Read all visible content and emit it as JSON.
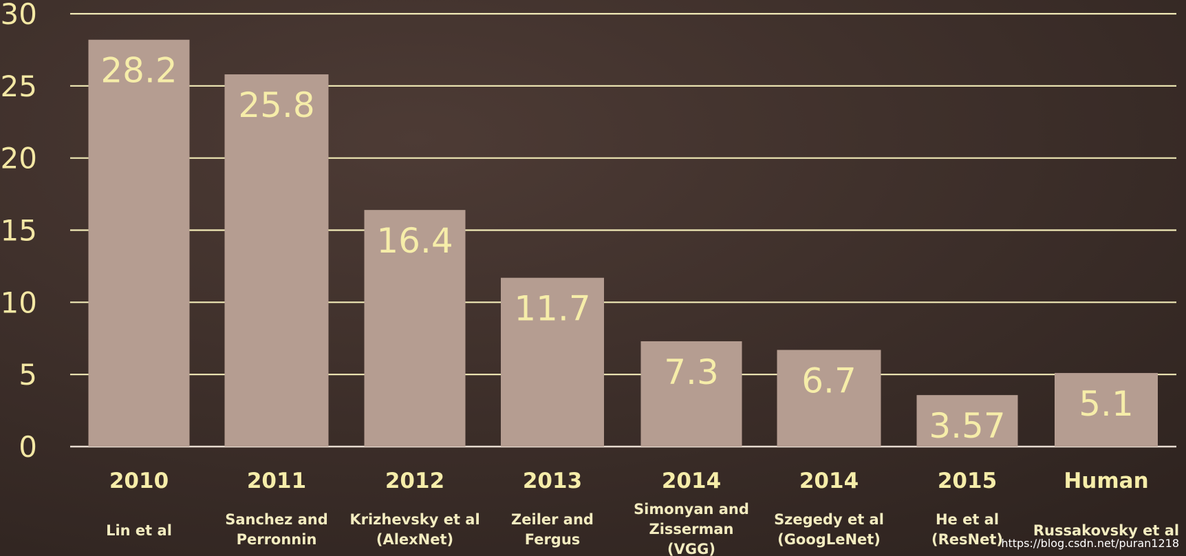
{
  "chart_data": {
    "type": "bar",
    "categories": [
      "2010",
      "2011",
      "2012",
      "2013",
      "2014",
      "2014",
      "2015",
      "Human"
    ],
    "subtitles": [
      [
        "Lin et al"
      ],
      [
        "Sanchez and",
        "Perronnin"
      ],
      [
        "Krizhevsky et al",
        "(AlexNet)"
      ],
      [
        "Zeiler and",
        "Fergus"
      ],
      [
        "Simonyan and",
        "Zisserman",
        "(VGG)"
      ],
      [
        "Szegedy et al",
        "(GoogLeNet)"
      ],
      [
        "He et al",
        "(ResNet)"
      ],
      [
        "Russakovsky et al"
      ]
    ],
    "values": [
      28.2,
      25.8,
      16.4,
      11.7,
      7.3,
      6.7,
      3.57,
      5.1
    ],
    "value_labels": [
      "28.2",
      "25.8",
      "16.4",
      "11.7",
      "7.3",
      "6.7",
      "3.57",
      "5.1"
    ],
    "yticks": [
      "0",
      "5",
      "10",
      "15",
      "20",
      "25",
      "30"
    ],
    "ylim": [
      0,
      30
    ],
    "grid": true,
    "colors": {
      "background": "#3e2f2a",
      "bar": "#b59d91",
      "grid": "#f3ecb8",
      "text": "#f6eda9"
    }
  },
  "watermark": "https://blog.csdn.net/puran1218"
}
